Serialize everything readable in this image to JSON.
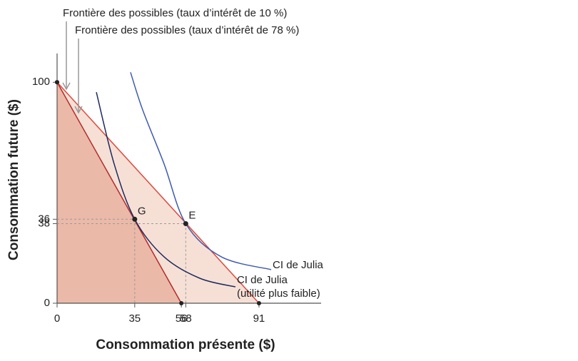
{
  "chart_data": {
    "type": "line",
    "x_label": "Consommation présente ($)",
    "y_label": "Consommation future ($)",
    "xlim": [
      0,
      119
    ],
    "ylim": [
      0,
      113
    ],
    "xticks": [
      0,
      35,
      56,
      58,
      91
    ],
    "yticks": [
      0,
      36,
      38,
      100
    ],
    "series": [
      {
        "name": "Frontière des possibles (taux d’intérêt de 10 %)",
        "color": "#e0483c",
        "fill": "#f6e0d6",
        "x": [
          0,
          91
        ],
        "values": [
          100,
          0
        ]
      },
      {
        "name": "Frontière des possibles (taux d’intérêt de 78 %)",
        "color": "#b42a2a",
        "fill": "#ebb9a8",
        "x": [
          0,
          56
        ],
        "values": [
          100,
          0
        ]
      },
      {
        "name": "CI de Julia",
        "color": "#3f5bb0",
        "x": [
          33.1,
          38.6,
          48.2,
          58,
          74.0,
          96.5
        ],
        "values": [
          104.5,
          87.4,
          63.1,
          36,
          21.0,
          15.2
        ]
      },
      {
        "name": "CI de Julia",
        "note": "(utilité plus faible)",
        "color": "#1f2a5e",
        "x": [
          17.7,
          25.7,
          35,
          48.2,
          64.3,
          80.4
        ],
        "values": [
          95.5,
          63.1,
          38,
          21.0,
          11.3,
          7.4
        ]
      }
    ],
    "points": [
      {
        "label": "G",
        "x": 35,
        "y": 38
      },
      {
        "label": "E",
        "x": 58,
        "y": 36
      }
    ]
  }
}
